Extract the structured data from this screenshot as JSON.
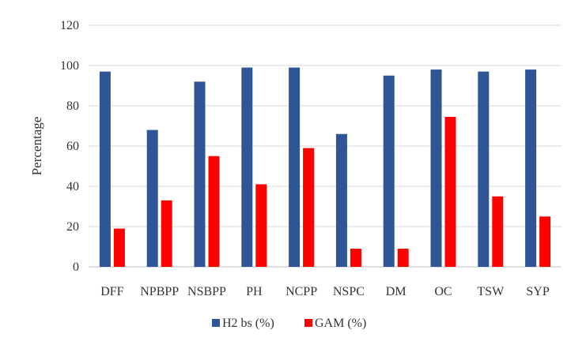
{
  "chart_data": {
    "type": "bar",
    "title": "",
    "xlabel": "",
    "ylabel": "Percentage",
    "ylim": [
      0,
      120
    ],
    "yticks": [
      0,
      20,
      40,
      60,
      80,
      100,
      120
    ],
    "grid": true,
    "legend_position": "bottom",
    "categories": [
      "DFF",
      "NPBPP",
      "NSBPP",
      "PH",
      "NCPP",
      "NSPC",
      "DM",
      "OC",
      "TSW",
      "SYP"
    ],
    "series": [
      {
        "name": "H2 bs (%)",
        "color": "#2F5597",
        "values": [
          97,
          68,
          92,
          99,
          99,
          66,
          95,
          98,
          97,
          98
        ]
      },
      {
        "name": "GAM (%)",
        "color": "#FF0000",
        "values": [
          19,
          33,
          55,
          41,
          59,
          9,
          9,
          74.5,
          35,
          25
        ]
      }
    ]
  }
}
